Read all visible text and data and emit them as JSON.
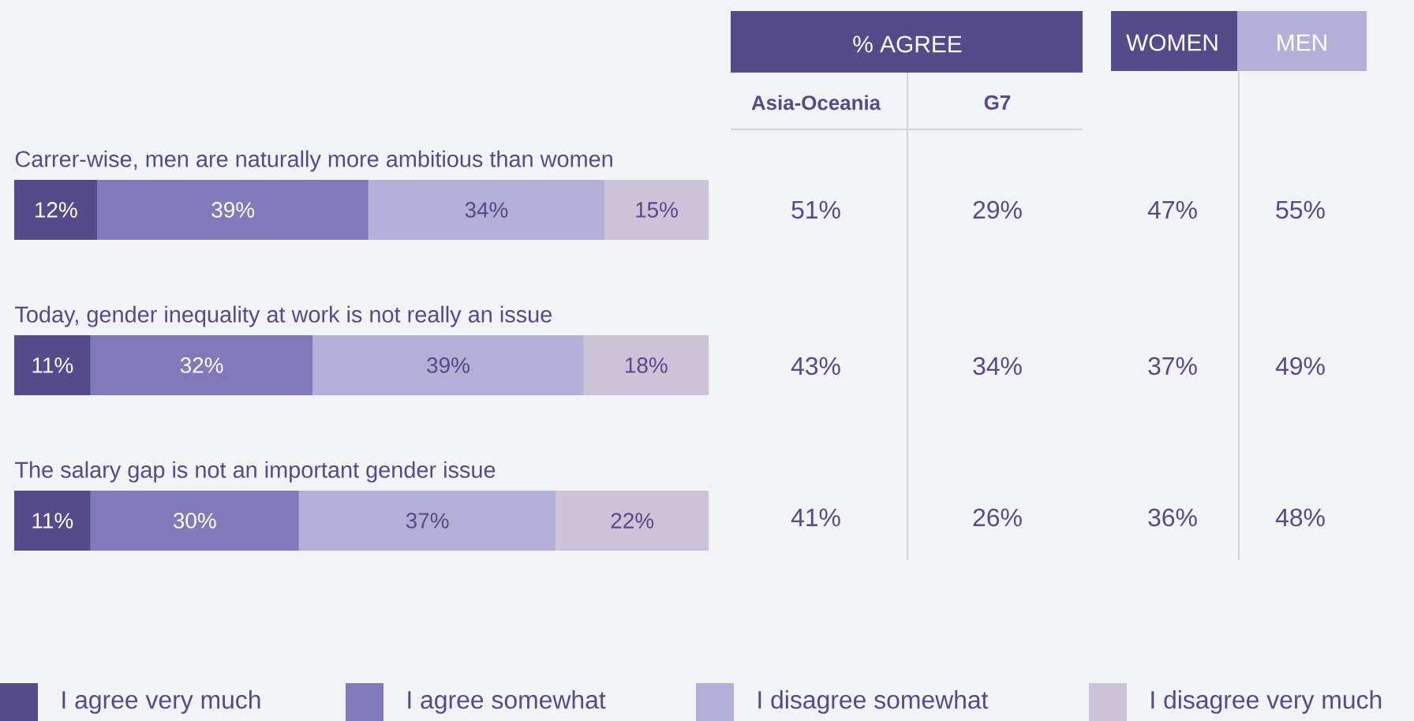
{
  "chart_data": [
    {
      "type": "bar",
      "orientation": "horizontal",
      "stacked": true,
      "legend": "bottom",
      "categories": [
        "Carrer-wise, men are naturally more ambitious than women",
        "Today, gender inequality at work is not really an issue",
        "The salary gap is not an important gender issue"
      ],
      "series": [
        {
          "name": "I agree very much",
          "color": "#554a8a",
          "values": [
            12,
            11,
            11
          ],
          "value_labels": [
            "12%",
            "11%",
            "11%"
          ]
        },
        {
          "name": "I agree somewhat",
          "color": "#807abb",
          "values": [
            39,
            32,
            30
          ],
          "value_labels": [
            "39%",
            "32%",
            "30%"
          ]
        },
        {
          "name": "I disagree somewhat",
          "color": "#b3afd6",
          "values": [
            34,
            39,
            37
          ],
          "value_labels": [
            "34%",
            "39%",
            "37%"
          ]
        },
        {
          "name": "I disagree very much",
          "color": "#cdc3d8",
          "values": [
            15,
            18,
            22
          ],
          "value_labels": [
            "15%",
            "18%",
            "22%"
          ]
        }
      ]
    },
    {
      "type": "other",
      "annotations": [
        "% AGREE",
        "Asia-Oceania",
        "G7",
        "WOMEN",
        "MEN",
        "51%",
        "29%",
        "47%",
        "55%",
        "43%",
        "34%",
        "37%",
        "49%",
        "41%",
        "26%",
        "36%",
        "48%"
      ]
    }
  ]
}
